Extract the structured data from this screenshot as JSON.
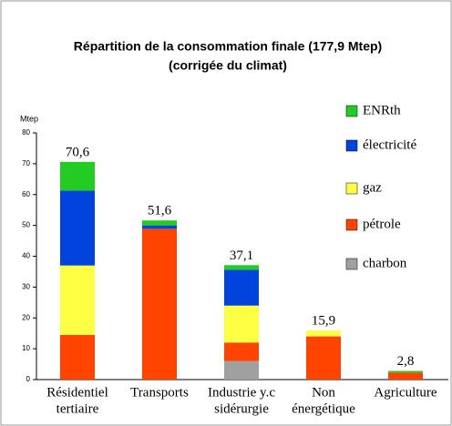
{
  "chart_data": {
    "type": "stacked-bar",
    "title": "Répartition de la consommation finale (177,9 Mtep)",
    "subtitle": "(corrigée du climat)",
    "y_label": "Mtep",
    "categories": [
      [
        "Résidentiel",
        "tertiaire"
      ],
      [
        "Transports"
      ],
      [
        "Industrie y.c",
        "sidérurgie"
      ],
      [
        "Non",
        "énergétique"
      ],
      [
        "Agriculture"
      ]
    ],
    "series": [
      {
        "name": "charbon",
        "color": "#a0a0a0",
        "values": [
          0,
          0,
          6,
          0,
          0
        ]
      },
      {
        "name": "pétrole",
        "color": "#ff4400",
        "values": [
          14.5,
          48.9,
          6,
          14,
          2.3
        ]
      },
      {
        "name": "gaz",
        "color": "#ffff44",
        "values": [
          22.5,
          0,
          12,
          1.9,
          0
        ]
      },
      {
        "name": "électricité",
        "color": "#0044dd",
        "values": [
          24.3,
          1.1,
          11.6,
          0,
          0
        ]
      },
      {
        "name": "ENRth",
        "color": "#22cc22",
        "values": [
          9.3,
          1.6,
          1.5,
          0,
          0.5
        ]
      }
    ],
    "totals": [
      70.6,
      51.6,
      37.1,
      15.9,
      2.8
    ],
    "total_labels": [
      "70,6",
      "51,6",
      "37,1",
      "15,9",
      "2,8"
    ],
    "ylim": [
      0,
      80
    ],
    "yticks": [
      0,
      10,
      20,
      30,
      40,
      50,
      60,
      70,
      80
    ]
  }
}
